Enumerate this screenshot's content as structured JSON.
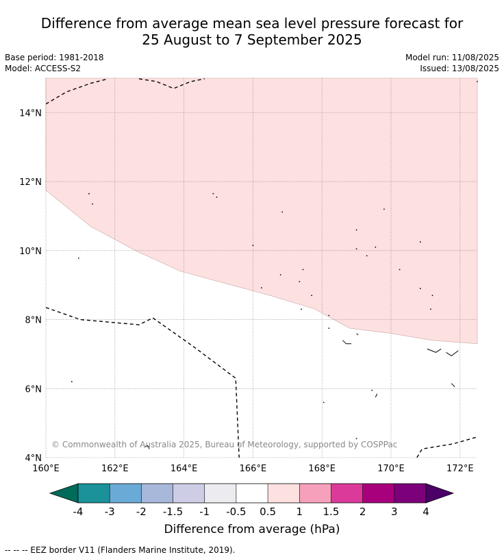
{
  "title": {
    "line1": "Difference from average mean sea level pressure forecast for",
    "line2": "25 August to 7 September 2025"
  },
  "meta_left": {
    "base_period": "Base period: 1981-2018",
    "model": "Model: ACCESS-S2"
  },
  "meta_right": {
    "model_run": "Model run: 11/08/2025",
    "issued": "Issued: 13/08/2025"
  },
  "map": {
    "lon_range": [
      160,
      172.5
    ],
    "lat_range": [
      4,
      15
    ],
    "lon_ticks": [
      {
        "value": 160,
        "label": "160°E"
      },
      {
        "value": 162,
        "label": "162°E"
      },
      {
        "value": 164,
        "label": "164°E"
      },
      {
        "value": 166,
        "label": "166°E"
      },
      {
        "value": 168,
        "label": "168°E"
      },
      {
        "value": 170,
        "label": "170°E"
      },
      {
        "value": 172,
        "label": "172°E"
      }
    ],
    "lat_ticks": [
      {
        "value": 4,
        "label": "4°N"
      },
      {
        "value": 6,
        "label": "6°N"
      },
      {
        "value": 8,
        "label": "8°N"
      },
      {
        "value": 10,
        "label": "10°N"
      },
      {
        "value": 12,
        "label": "12°N"
      },
      {
        "value": 14,
        "label": "14°N"
      }
    ],
    "positive_region_color": "#fde0e0",
    "positive_region_boundary": [
      [
        160,
        11.75
      ],
      [
        161.3,
        10.7
      ],
      [
        162.6,
        10.0
      ],
      [
        163.9,
        9.4
      ],
      [
        165.2,
        9.05
      ],
      [
        166.5,
        8.7
      ],
      [
        167.8,
        8.3
      ],
      [
        168.8,
        7.75
      ],
      [
        170.0,
        7.6
      ],
      [
        171.2,
        7.4
      ],
      [
        172.5,
        7.3
      ]
    ],
    "eez_lines": [
      [
        [
          160,
          14.25
        ],
        [
          160.6,
          14.6
        ],
        [
          161.3,
          14.85
        ],
        [
          161.8,
          14.98
        ]
      ],
      [
        [
          162.7,
          14.98
        ],
        [
          163.2,
          14.9
        ],
        [
          163.7,
          14.7
        ],
        [
          164.2,
          14.9
        ],
        [
          164.6,
          14.98
        ]
      ],
      [
        [
          160,
          8.35
        ],
        [
          161,
          8.0
        ],
        [
          162.7,
          7.85
        ],
        [
          163.1,
          8.05
        ],
        [
          164.3,
          7.2
        ],
        [
          165.5,
          6.3
        ],
        [
          165.6,
          4.0
        ]
      ],
      [
        [
          170.75,
          4.0
        ],
        [
          170.9,
          4.25
        ],
        [
          171.8,
          4.4
        ],
        [
          172.5,
          4.6
        ]
      ]
    ],
    "islands": [
      [
        160.95,
        9.78
      ],
      [
        161.25,
        11.65
      ],
      [
        161.35,
        11.35
      ],
      [
        164.85,
        11.65
      ],
      [
        164.95,
        11.55
      ],
      [
        166.0,
        10.15
      ],
      [
        166.25,
        8.92
      ],
      [
        166.85,
        11.12
      ],
      [
        166.8,
        9.3
      ],
      [
        167.35,
        9.1
      ],
      [
        167.45,
        9.45
      ],
      [
        167.7,
        8.7
      ],
      [
        167.4,
        8.3
      ],
      [
        168.2,
        8.12
      ],
      [
        168.2,
        7.75
      ],
      [
        169.0,
        10.6
      ],
      [
        169.0,
        10.05
      ],
      [
        169.3,
        9.85
      ],
      [
        169.55,
        10.1
      ],
      [
        169.8,
        11.2
      ],
      [
        170.25,
        9.45
      ],
      [
        170.85,
        10.25
      ],
      [
        170.85,
        8.9
      ],
      [
        171.2,
        8.7
      ],
      [
        171.15,
        8.3
      ],
      [
        172.5,
        14.9
      ],
      [
        160.75,
        6.2
      ],
      [
        168.05,
        5.6
      ],
      [
        169.45,
        5.95
      ],
      [
        169.0,
        4.55
      ]
    ],
    "island_coasts": [
      [
        [
          168.6,
          7.4
        ],
        [
          168.7,
          7.3
        ],
        [
          168.85,
          7.3
        ]
      ],
      [
        [
          169.0,
          7.6
        ],
        [
          169.05,
          7.55
        ]
      ],
      [
        [
          171.05,
          7.15
        ],
        [
          171.3,
          7.05
        ],
        [
          171.45,
          7.15
        ]
      ],
      [
        [
          171.6,
          7.05
        ],
        [
          171.75,
          6.95
        ],
        [
          171.95,
          7.1
        ]
      ],
      [
        [
          171.75,
          6.15
        ],
        [
          171.85,
          6.05
        ]
      ],
      [
        [
          162.85,
          4.3
        ],
        [
          162.95,
          4.35
        ],
        [
          163.0,
          4.25
        ]
      ],
      [
        [
          169.6,
          5.85
        ],
        [
          169.55,
          5.75
        ]
      ]
    ],
    "copyright": "© Commonwealth of Australia 2025, Bureau of Meteorology, supported by COSPPac"
  },
  "colorbar": {
    "colors": [
      "#006b5a",
      "#1b9199",
      "#6aaad6",
      "#a8b8da",
      "#cdcde6",
      "#ececf0",
      "#ffffff",
      "#fde0e0",
      "#f7a0bb",
      "#dc3a9b",
      "#a8007d",
      "#7c0079",
      "#4b0068"
    ],
    "tick_labels": [
      "-4",
      "-3",
      "-2",
      "-1.5",
      "-1",
      "-0.5",
      "0.5",
      "1",
      "1.5",
      "2",
      "3",
      "4"
    ],
    "label": "Difference from average (hPa)"
  },
  "footnote": "--  --  -- EEZ border V11 (Flanders Marine Institute, 2019)."
}
